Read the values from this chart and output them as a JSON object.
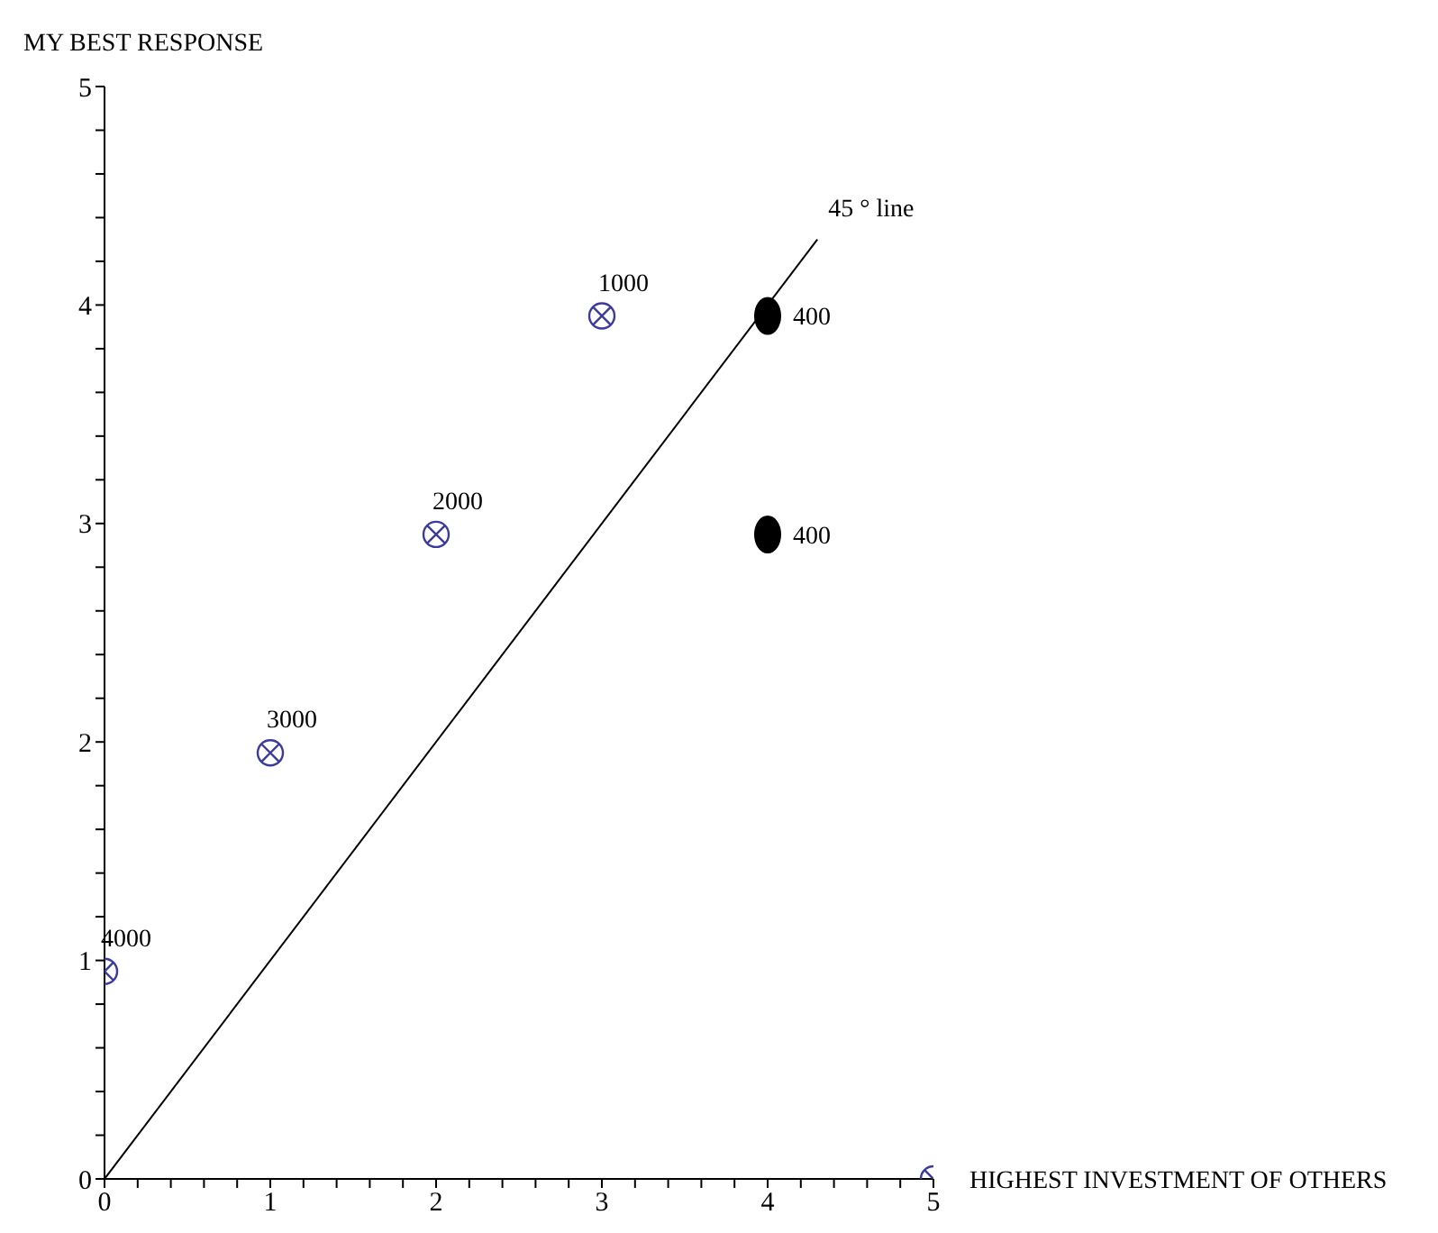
{
  "chart_data": {
    "type": "scatter",
    "xlabel": "HIGHEST INVESTMENT  OF OTHERS",
    "ylabel": "MY BEST RESPONSE",
    "xlim": [
      0,
      5
    ],
    "ylim": [
      0,
      5
    ],
    "xticks": [
      0,
      {
        "value": 0.2,
        "label": null
      },
      {
        "value": 0.4,
        "label": null
      },
      {
        "value": 0.6,
        "label": null
      },
      {
        "value": 0.8,
        "label": null
      },
      1,
      {
        "value": 1.2,
        "label": null
      },
      {
        "value": 1.4,
        "label": null
      },
      {
        "value": 1.6,
        "label": null
      },
      {
        "value": 1.8,
        "label": null
      },
      2,
      {
        "value": 2.2,
        "label": null
      },
      {
        "value": 2.4,
        "label": null
      },
      {
        "value": 2.6,
        "label": null
      },
      {
        "value": 2.8,
        "label": null
      },
      3,
      {
        "value": 3.2,
        "label": null
      },
      {
        "value": 3.4,
        "label": null
      },
      {
        "value": 3.6,
        "label": null
      },
      {
        "value": 3.8,
        "label": null
      },
      4,
      {
        "value": 4.2,
        "label": null
      },
      {
        "value": 4.4,
        "label": null
      },
      {
        "value": 4.6,
        "label": null
      },
      {
        "value": 4.8,
        "label": null
      },
      5
    ],
    "yticks": [
      0,
      {
        "value": 0.2,
        "label": null
      },
      {
        "value": 0.4,
        "label": null
      },
      {
        "value": 0.6,
        "label": null
      },
      {
        "value": 0.8,
        "label": null
      },
      1,
      {
        "value": 1.2,
        "label": null
      },
      {
        "value": 1.4,
        "label": null
      },
      {
        "value": 1.6,
        "label": null
      },
      {
        "value": 1.8,
        "label": null
      },
      2,
      {
        "value": 2.2,
        "label": null
      },
      {
        "value": 2.4,
        "label": null
      },
      {
        "value": 2.6,
        "label": null
      },
      {
        "value": 2.8,
        "label": null
      },
      3,
      {
        "value": 3.2,
        "label": null
      },
      {
        "value": 3.4,
        "label": null
      },
      {
        "value": 3.6,
        "label": null
      },
      {
        "value": 3.8,
        "label": null
      },
      4,
      {
        "value": 4.2,
        "label": null
      },
      {
        "value": 4.4,
        "label": null
      },
      {
        "value": 4.6,
        "label": null
      },
      {
        "value": 4.8,
        "label": null
      },
      5
    ],
    "grid": false,
    "legend": false,
    "marker": "circle",
    "series": [
      {
        "color": "#3b3b9e",
        "x": [
          0,
          1,
          2,
          3,
          5
        ],
        "values": [
          0.95,
          1.95,
          2.95,
          3.95,
          0
        ]
      },
      {
        "color": "#000000",
        "x": [
          4,
          4
        ],
        "values": [
          3.95,
          2.95
        ]
      },
      {
        "type": "line",
        "marker": "none",
        "color": "#000000",
        "x": [
          0,
          4.3
        ],
        "values": [
          0,
          4.3
        ]
      }
    ],
    "annotations": [
      {
        "text": "4000",
        "x": 0,
        "y": 0.95
      },
      {
        "text": "3000",
        "x": 1,
        "y": 1.95
      },
      {
        "text": "2000",
        "x": 2,
        "y": 2.95
      },
      {
        "text": "1000",
        "x": 3,
        "y": 3.95
      },
      {
        "text": "400",
        "x": 4,
        "y": 3.95
      },
      {
        "text": "400",
        "x": 4,
        "y": 2.95
      },
      {
        "text": "45 ° line",
        "x": 4.3,
        "y": 4.3
      }
    ]
  }
}
